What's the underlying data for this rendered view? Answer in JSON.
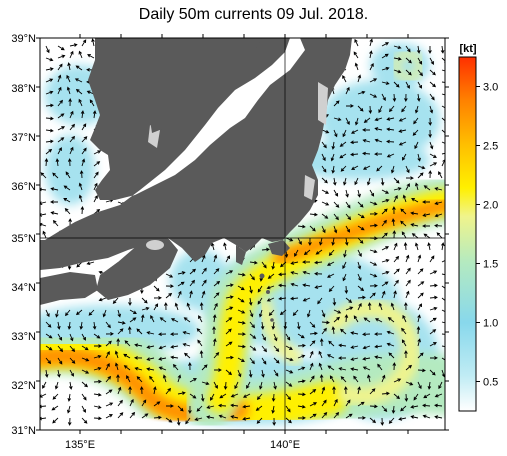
{
  "title": "Daily 50m currents 09 Jul. 2018.",
  "map": {
    "lat_labels": [
      "39°N",
      "38°N",
      "37°N",
      "36°N",
      "35°N",
      "34°N",
      "33°N",
      "32°N",
      "31°N"
    ],
    "lon_labels": [
      "135°E",
      "140°E"
    ],
    "lat_range": [
      31,
      39
    ],
    "lon_range": [
      133.5,
      145.0
    ],
    "grid": true,
    "land_color": "#5a5a5a",
    "ocean_color": "#ffffff"
  },
  "colorbar": {
    "unit": "[kt]",
    "ticks": [
      "0.5",
      "1.0",
      "1.5",
      "2.0",
      "2.5",
      "3.0"
    ],
    "tick_values": [
      0.5,
      1.0,
      1.5,
      2.0,
      2.5,
      3.0
    ],
    "range": [
      0.25,
      3.25
    ],
    "colors": [
      "#ffffff",
      "#c0ecf4",
      "#88d8ec",
      "#b4eac0",
      "#f0f48c",
      "#fff000",
      "#ffc000",
      "#ff8000",
      "#ff3000"
    ]
  }
}
